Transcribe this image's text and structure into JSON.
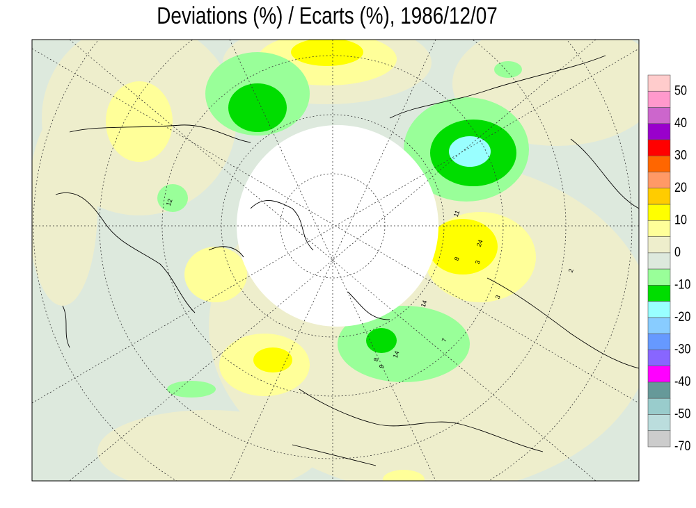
{
  "title": "Deviations (%) / Ecarts (%), 1986/12/07",
  "legend": {
    "colors": [
      "#ffcccc",
      "#ff99cc",
      "#cc66cc",
      "#9900cc",
      "#ff0000",
      "#ff6600",
      "#ff9966",
      "#ffcc00",
      "#ffff00",
      "#ffff99",
      "#eeeecc",
      "#dde9dd",
      "#99ff99",
      "#00dd00",
      "#99ffff",
      "#88ccff",
      "#6699ff",
      "#8866ff",
      "#ff00ff",
      "#669999",
      "#99cccc",
      "#bbdddd",
      "#cccccc"
    ],
    "labels": [
      50,
      40,
      30,
      20,
      10,
      0,
      -10,
      -20,
      -30,
      -40,
      -50,
      -70
    ]
  },
  "map": {
    "contour_labels": [
      "12",
      "11",
      "24",
      "8",
      "3",
      "14",
      "7",
      "14",
      "8",
      "9",
      "2",
      "3"
    ]
  }
}
